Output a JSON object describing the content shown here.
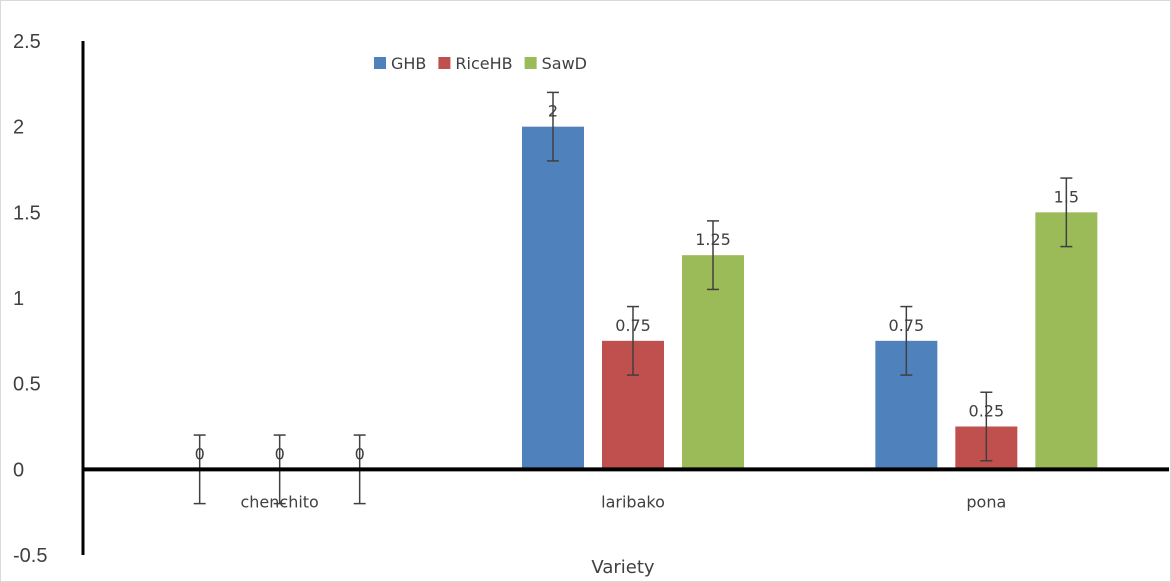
{
  "chart_data": {
    "type": "bar",
    "title": "",
    "xlabel": "Variety",
    "ylabel": "",
    "ylim": [
      -0.5,
      2.5
    ],
    "yticks": [
      -0.5,
      0,
      0.5,
      1,
      1.5,
      2,
      2.5
    ],
    "ytick_labels": [
      "-0.5",
      "0",
      "0.5",
      "1",
      "1.5",
      "2",
      "2.5"
    ],
    "categories": [
      "chenchito",
      "laribako",
      "pona"
    ],
    "series": [
      {
        "name": "GHB",
        "color": "#4F81BD",
        "values": [
          0,
          2,
          0.75
        ],
        "labels": [
          "0",
          "2",
          "0.75"
        ],
        "error": [
          0.2,
          0.2,
          0.2
        ]
      },
      {
        "name": "RiceHB",
        "color": "#C0504D",
        "values": [
          0,
          0.75,
          0.25
        ],
        "labels": [
          "0",
          "0.75",
          "0.25"
        ],
        "error": [
          0.2,
          0.2,
          0.2
        ]
      },
      {
        "name": "SawD",
        "color": "#9BBB59",
        "values": [
          0,
          1.25,
          1.5
        ],
        "labels": [
          "0",
          "1.25",
          "1.5"
        ],
        "error": [
          0.2,
          0.2,
          0.2
        ]
      }
    ],
    "legend_position": "top",
    "grid": false
  }
}
